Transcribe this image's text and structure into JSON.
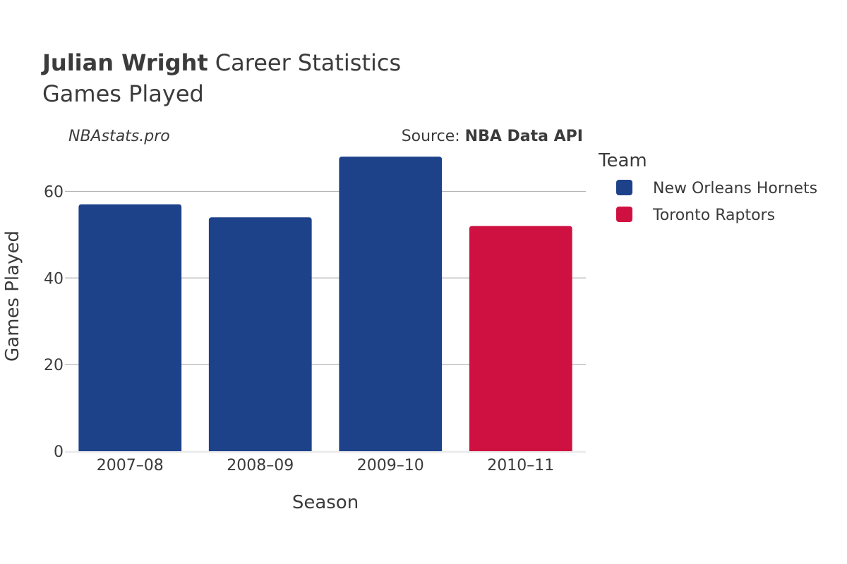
{
  "chart": {
    "title_bold": "Julian Wright",
    "title_rest": " Career Statistics",
    "subtitle": "Games Played",
    "watermark": "NBAstats.pro",
    "source_prefix": "Source: ",
    "source_bold": "NBA Data API",
    "xlabel": "Season",
    "ylabel": "Games Played",
    "legend_title": "Team"
  },
  "chart_data": {
    "type": "bar",
    "categories": [
      "2007–08",
      "2008–09",
      "2009–10",
      "2010–11"
    ],
    "values": [
      57,
      54,
      68,
      52
    ],
    "teams": [
      "New Orleans Hornets",
      "New Orleans Hornets",
      "New Orleans Hornets",
      "Toronto Raptors"
    ],
    "series": [
      {
        "name": "New Orleans Hornets",
        "color": "#1d428a"
      },
      {
        "name": "Toronto Raptors",
        "color": "#ce1141"
      }
    ],
    "ylim": [
      0,
      70
    ],
    "yticks": [
      0,
      20,
      40,
      60
    ],
    "grid": true,
    "legend_position": "right"
  }
}
